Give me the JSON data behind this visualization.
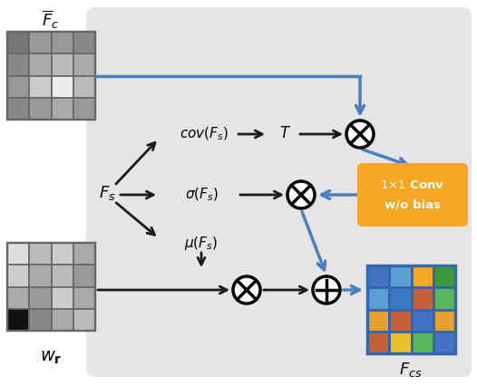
{
  "bg_color": "#e5e5e5",
  "fig_bg": "#ffffff",
  "orange": "#f5a623",
  "arrow_blue": "#4a7fc1",
  "fc_grid_colors": [
    [
      "#777777",
      "#999999",
      "#999999",
      "#888888"
    ],
    [
      "#888888",
      "#aaaaaa",
      "#bbbbbb",
      "#aaaaaa"
    ],
    [
      "#999999",
      "#cccccc",
      "#eeeeee",
      "#bbbbbb"
    ],
    [
      "#888888",
      "#999999",
      "#aaaaaa",
      "#999999"
    ]
  ],
  "wr_grid_colors": [
    [
      "#dddddd",
      "#bbbbbb",
      "#cccccc",
      "#aaaaaa"
    ],
    [
      "#cccccc",
      "#aaaaaa",
      "#bbbbbb",
      "#999999"
    ],
    [
      "#aaaaaa",
      "#999999",
      "#cccccc",
      "#aaaaaa"
    ],
    [
      "#111111",
      "#888888",
      "#aaaaaa",
      "#bbbbbb"
    ]
  ],
  "fcs_grid_colors": [
    [
      "#4472c4",
      "#5a9fd4",
      "#f5a623",
      "#3a9a3a"
    ],
    [
      "#5a9fd4",
      "#3a7ac4",
      "#c4603a",
      "#5ab85a"
    ],
    [
      "#e8a030",
      "#c4603a",
      "#4472c4",
      "#e8a030"
    ],
    [
      "#c4603a",
      "#e8c030",
      "#5ab85a",
      "#4472c4"
    ]
  ]
}
